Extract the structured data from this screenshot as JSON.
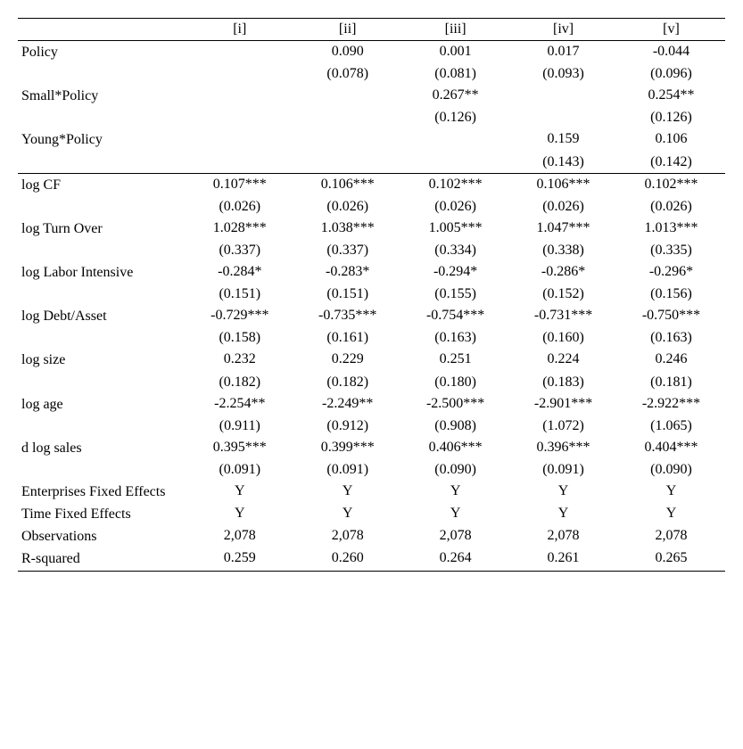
{
  "columns": [
    "[i]",
    "[ii]",
    "[iii]",
    "[iv]",
    "[v]"
  ],
  "topSection": [
    {
      "label": "Policy",
      "coef": [
        "",
        "0.090",
        "0.001",
        "0.017",
        "-0.044"
      ],
      "se": [
        "",
        "(0.078)",
        "(0.081)",
        "(0.093)",
        "(0.096)"
      ]
    },
    {
      "label": "Small*Policy",
      "coef": [
        "",
        "",
        "0.267**",
        "",
        "0.254**"
      ],
      "se": [
        "",
        "",
        "(0.126)",
        "",
        "(0.126)"
      ]
    },
    {
      "label": "Young*Policy",
      "coef": [
        "",
        "",
        "",
        "0.159",
        "0.106"
      ],
      "se": [
        "",
        "",
        "",
        "(0.143)",
        "(0.142)"
      ]
    }
  ],
  "midSection": [
    {
      "label": "log CF",
      "coef": [
        "0.107***",
        "0.106***",
        "0.102***",
        "0.106***",
        "0.102***"
      ],
      "se": [
        "(0.026)",
        "(0.026)",
        "(0.026)",
        "(0.026)",
        "(0.026)"
      ]
    },
    {
      "label": "log Turn Over",
      "coef": [
        "1.028***",
        "1.038***",
        "1.005***",
        "1.047***",
        "1.013***"
      ],
      "se": [
        "(0.337)",
        "(0.337)",
        "(0.334)",
        "(0.338)",
        "(0.335)"
      ]
    },
    {
      "label": "log Labor Intensive",
      "coef": [
        "-0.284*",
        "-0.283*",
        "-0.294*",
        "-0.286*",
        "-0.296*"
      ],
      "se": [
        "(0.151)",
        "(0.151)",
        "(0.155)",
        "(0.152)",
        "(0.156)"
      ]
    },
    {
      "label": "log Debt/Asset",
      "coef": [
        "-0.729***",
        "-0.735***",
        "-0.754***",
        "-0.731***",
        "-0.750***"
      ],
      "se": [
        "(0.158)",
        "(0.161)",
        "(0.163)",
        "(0.160)",
        "(0.163)"
      ]
    },
    {
      "label": "log size",
      "coef": [
        "0.232",
        "0.229",
        "0.251",
        "0.224",
        "0.246"
      ],
      "se": [
        "(0.182)",
        "(0.182)",
        "(0.180)",
        "(0.183)",
        "(0.181)"
      ]
    },
    {
      "label": "log age",
      "coef": [
        "-2.254**",
        "-2.249**",
        "-2.500***",
        "-2.901***",
        "-2.922***"
      ],
      "se": [
        "(0.911)",
        "(0.912)",
        "(0.908)",
        "(1.072)",
        "(1.065)"
      ]
    },
    {
      "label": "d log sales",
      "coef": [
        "0.395***",
        "0.399***",
        "0.406***",
        "0.396***",
        "0.404***"
      ],
      "se": [
        "(0.091)",
        "(0.091)",
        "(0.090)",
        "(0.091)",
        "(0.090)"
      ]
    }
  ],
  "bottomSection": [
    {
      "label": "Enterprises Fixed Effects",
      "vals": [
        "Y",
        "Y",
        "Y",
        "Y",
        "Y"
      ]
    },
    {
      "label": "Time Fixed Effects",
      "vals": [
        "Y",
        "Y",
        "Y",
        "Y",
        "Y"
      ]
    },
    {
      "label": "Observations",
      "vals": [
        "2,078",
        "2,078",
        "2,078",
        "2,078",
        "2,078"
      ]
    },
    {
      "label": "R-squared",
      "vals": [
        "0.259",
        "0.260",
        "0.264",
        "0.261",
        "0.265"
      ]
    }
  ]
}
